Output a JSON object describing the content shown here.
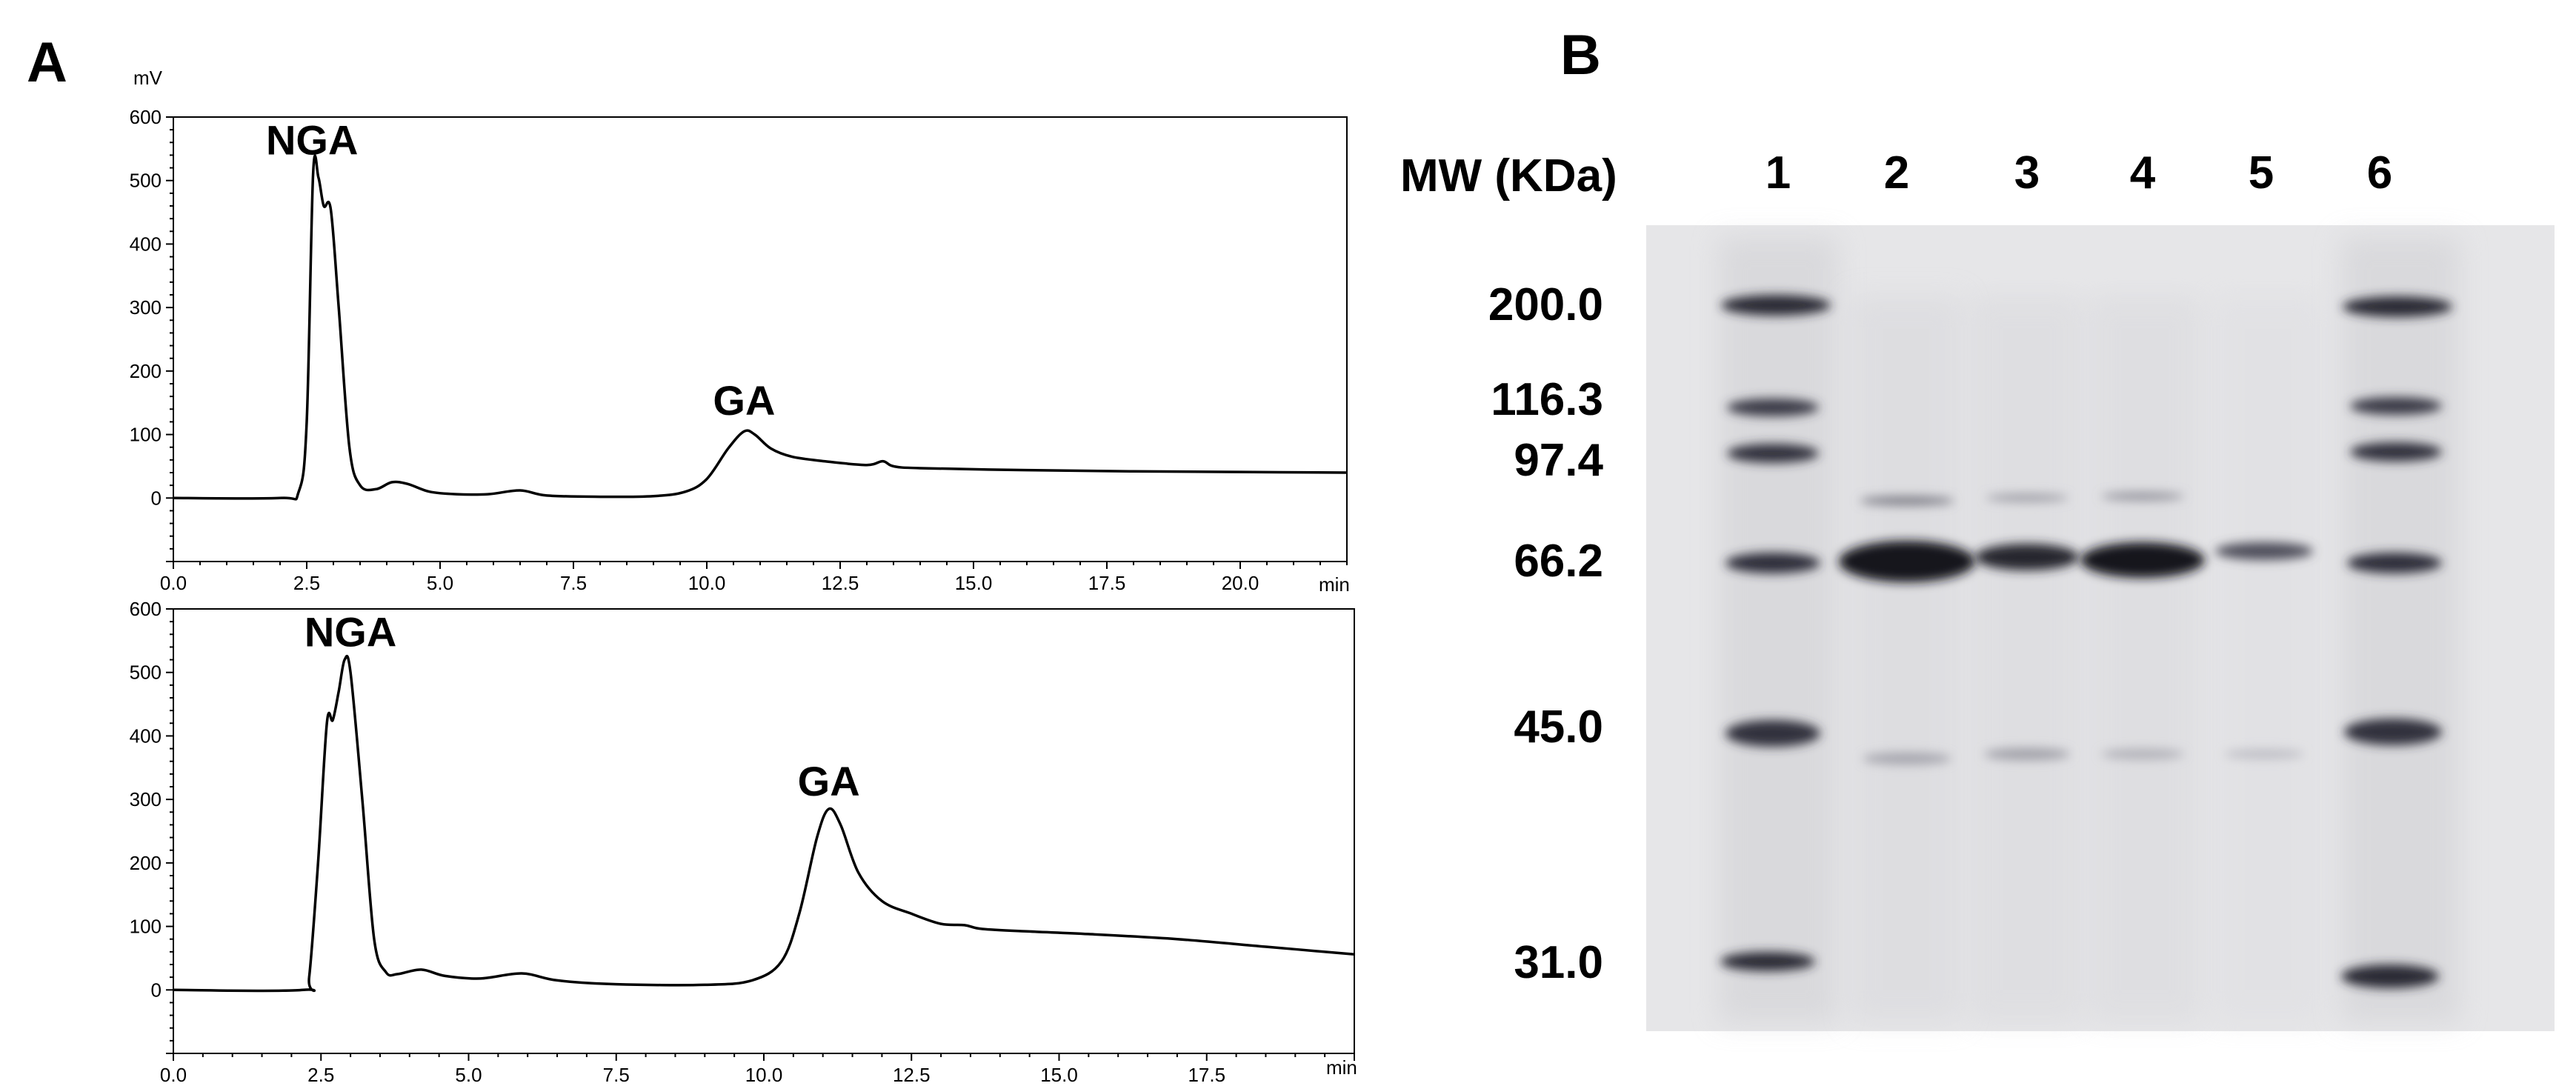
{
  "panel_a": {
    "letter": "A",
    "y_unit": "mV",
    "x_unit": "min"
  },
  "panel_b": {
    "letter": "B",
    "mw_title": "MW (KDa)",
    "lanes": [
      "1",
      "2",
      "3",
      "4",
      "5",
      "6"
    ],
    "markers": [
      "200.0",
      "116.3",
      "97.4",
      "66.2",
      "45.0",
      "31.0"
    ]
  },
  "chart_data": [
    {
      "type": "line",
      "yunit": "mV",
      "xunit": "min",
      "xlim": [
        0,
        22
      ],
      "ylim": [
        -100,
        600
      ],
      "xticks": [
        "0.0",
        "2.5",
        "5.0",
        "7.5",
        "10.0",
        "12.5",
        "15.0",
        "17.5",
        "20.0"
      ],
      "yticks": [
        "600",
        "500",
        "400",
        "300",
        "200",
        "100",
        "0"
      ],
      "annotations": [
        {
          "text": "NGA",
          "x": 2.6,
          "y": 520
        },
        {
          "text": "GA",
          "x": 10.7,
          "y": 110
        }
      ],
      "x": [
        0,
        2.0,
        2.35,
        2.5,
        2.62,
        2.72,
        2.82,
        2.95,
        3.1,
        3.3,
        3.5,
        3.8,
        4.1,
        4.4,
        4.8,
        5.3,
        5.9,
        6.5,
        7.0,
        8.0,
        9.0,
        9.6,
        10.0,
        10.4,
        10.7,
        10.9,
        11.2,
        11.6,
        12.2,
        13.0,
        13.3,
        13.5,
        14.0,
        16.0,
        18.0,
        20.0,
        22.0
      ],
      "y": [
        0,
        0,
        10,
        120,
        510,
        505,
        460,
        455,
        300,
        80,
        20,
        14,
        25,
        22,
        10,
        6,
        6,
        12,
        4,
        2,
        3,
        10,
        30,
        78,
        105,
        100,
        78,
        65,
        58,
        52,
        58,
        50,
        47,
        44,
        42,
        41,
        40
      ]
    },
    {
      "type": "line",
      "yunit": "mV",
      "xunit": "min",
      "xlim": [
        0,
        20
      ],
      "ylim": [
        -100,
        600
      ],
      "xticks": [
        "0.0",
        "2.5",
        "5.0",
        "7.5",
        "10.0",
        "12.5",
        "15.0",
        "17.5"
      ],
      "yticks": [
        "600",
        "500",
        "400",
        "300",
        "200",
        "100",
        "0"
      ],
      "annotations": [
        {
          "text": "NGA",
          "x": 3.0,
          "y": 520
        },
        {
          "text": "GA",
          "x": 11.1,
          "y": 285
        }
      ],
      "x": [
        0,
        2.2,
        2.3,
        2.45,
        2.6,
        2.7,
        2.8,
        2.9,
        3.0,
        3.2,
        3.4,
        3.6,
        3.8,
        4.2,
        4.6,
        5.2,
        5.9,
        6.5,
        7.5,
        9.0,
        9.8,
        10.3,
        10.6,
        10.9,
        11.1,
        11.3,
        11.6,
        12.0,
        12.5,
        13.0,
        13.4,
        13.7,
        14.5,
        15.5,
        17.0,
        18.5,
        20.0
      ],
      "y": [
        0,
        0,
        20,
        200,
        420,
        425,
        470,
        520,
        500,
        300,
        80,
        28,
        25,
        32,
        22,
        18,
        26,
        15,
        9,
        8,
        15,
        45,
        120,
        240,
        285,
        260,
        185,
        140,
        120,
        104,
        102,
        96,
        92,
        88,
        80,
        68,
        56
      ]
    }
  ]
}
